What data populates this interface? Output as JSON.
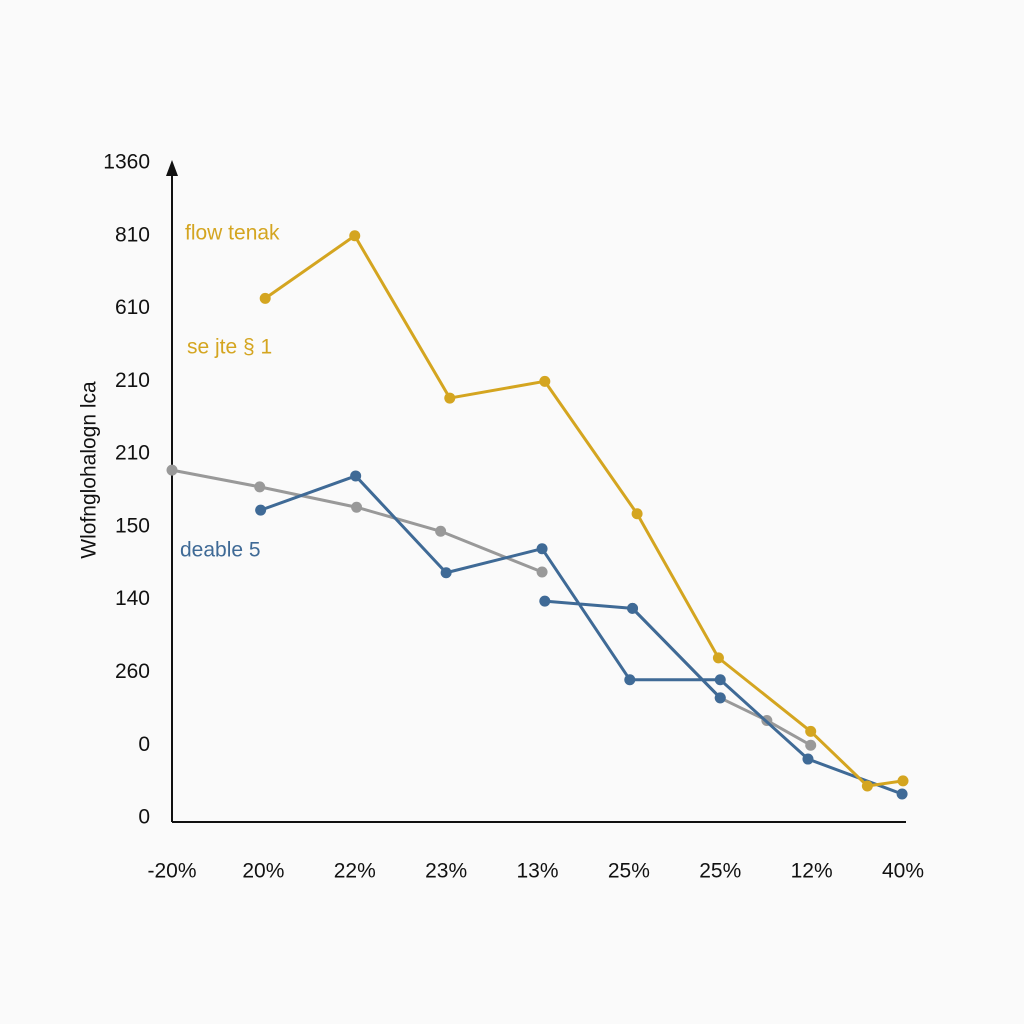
{
  "chart_data": {
    "type": "line",
    "y_label": "Wlofnglohalogn lca",
    "xlim": [
      0,
      8
    ],
    "xticks": [
      {
        "value": 0,
        "label": "-20%"
      },
      {
        "value": 1,
        "label": "20%"
      },
      {
        "value": 2,
        "label": "22%"
      },
      {
        "value": 3,
        "label": "23%"
      },
      {
        "value": 4,
        "label": "13%"
      },
      {
        "value": 5,
        "label": "25%"
      },
      {
        "value": 6,
        "label": "25%"
      },
      {
        "value": 7,
        "label": "12%"
      },
      {
        "value": 8,
        "label": "40%"
      }
    ],
    "ylim": [
      0,
      9
    ],
    "yticks": [
      {
        "value": 0,
        "label": "0"
      },
      {
        "value": 1,
        "label": "0"
      },
      {
        "value": 2,
        "label": "260"
      },
      {
        "value": 3,
        "label": "140"
      },
      {
        "value": 4,
        "label": "150"
      },
      {
        "value": 5,
        "label": "210"
      },
      {
        "value": 6,
        "label": "210"
      },
      {
        "value": 7,
        "label": "610"
      },
      {
        "value": 8,
        "label": "810"
      },
      {
        "value": 9,
        "label": "1360"
      }
    ],
    "grid": false,
    "annotations": [
      {
        "text": "flow tenak",
        "color": "#d4a520"
      },
      {
        "text": "se jte § 1",
        "color": "#d4a520"
      },
      {
        "text": "deable 5",
        "color": "#3f6a96"
      }
    ],
    "series": [
      {
        "color": "#999999",
        "x": [
          0,
          0.96,
          2.02,
          2.94,
          4.05,
          null,
          5.04,
          6.0,
          6.51,
          6.99
        ],
        "values": [
          4.78,
          4.55,
          4.27,
          3.94,
          3.38,
          null,
          2.88,
          1.65,
          1.34,
          1.0
        ]
      },
      {
        "color": "#3f6a96",
        "x": [
          0.97,
          2.01,
          3.0,
          4.05,
          5.01,
          6.0,
          6.96,
          7.99,
          null,
          4.08,
          5.04,
          6.0
        ],
        "values": [
          4.23,
          4.7,
          3.37,
          3.7,
          1.9,
          1.9,
          0.81,
          0.33,
          null,
          2.98,
          2.88,
          1.65
        ]
      },
      {
        "color": "#d4a520",
        "x": [
          1.02,
          2.0,
          3.04,
          4.08,
          5.09,
          5.98,
          6.99,
          7.61,
          8.0
        ],
        "values": [
          7.14,
          8.0,
          5.77,
          6.0,
          4.18,
          2.2,
          1.19,
          0.44,
          0.51
        ]
      }
    ]
  }
}
